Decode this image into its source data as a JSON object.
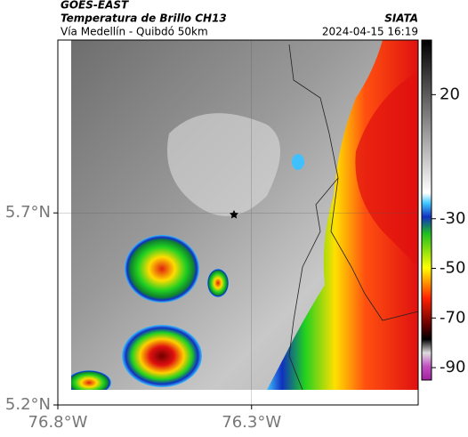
{
  "header": {
    "source": "GOES-EAST",
    "title": "Temperatura de Brillo CH13",
    "subtitle": "Vía Medellín - Quibdó 50km",
    "org": "SIATA",
    "timestamp": "2024-04-15 16:19"
  },
  "map": {
    "xlim": [
      -76.8,
      -75.87
    ],
    "ylim": [
      5.2,
      6.15
    ],
    "xticks": [
      {
        "value": -76.8,
        "label": "76.8°W"
      },
      {
        "value": -76.3,
        "label": "76.3°W"
      }
    ],
    "yticks": [
      {
        "value": 5.7,
        "label": "5.7°N"
      },
      {
        "value": 5.2,
        "label": "5.2°N"
      }
    ]
  },
  "colorbar": {
    "lim": [
      42,
      -95
    ],
    "ticks": [
      20,
      -30,
      -50,
      -70,
      -90
    ]
  }
}
